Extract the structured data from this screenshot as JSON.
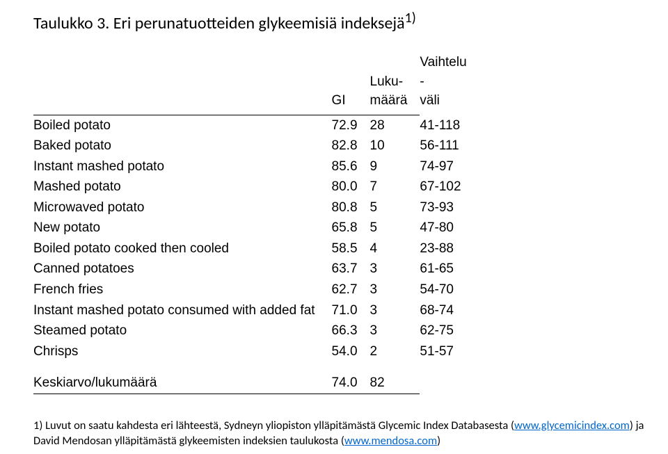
{
  "title": "Taulukko 3. Eri perunatuotteiden glykeemisiä indeksejä",
  "title_sup": "1)",
  "headers": {
    "name": "",
    "gi": "GI",
    "n_line1": "Luku-",
    "n_line2": "määrä",
    "rng_line1": "Vaihtelu",
    "rng_line2": "-",
    "rng_line3": "väli"
  },
  "rows": [
    {
      "name": "Boiled potato",
      "gi": "72.9",
      "n": "28",
      "rng": "41-118"
    },
    {
      "name": "Baked potato",
      "gi": "82.8",
      "n": "10",
      "rng": "56-111"
    },
    {
      "name": "Instant mashed potato",
      "gi": "85.6",
      "n": "9",
      "rng": "74-97"
    },
    {
      "name": "Mashed potato",
      "gi": "80.0",
      "n": "7",
      "rng": "67-102"
    },
    {
      "name": "Microwaved potato",
      "gi": "80.8",
      "n": "5",
      "rng": "73-93"
    },
    {
      "name": "New potato",
      "gi": "65.8",
      "n": "5",
      "rng": "47-80"
    },
    {
      "name": "Boiled potato cooked then cooled",
      "gi": "58.5",
      "n": "4",
      "rng": "23-88"
    },
    {
      "name": "Canned potatoes",
      "gi": "63.7",
      "n": "3",
      "rng": "61-65"
    },
    {
      "name": "French fries",
      "gi": "62.7",
      "n": "3",
      "rng": "54-70"
    },
    {
      "name": "Instant mashed potato consumed with added fat",
      "gi": "71.0",
      "n": "3",
      "rng": "68-74"
    },
    {
      "name": "Steamed potato",
      "gi": "66.3",
      "n": "3",
      "rng": "62-75"
    },
    {
      "name": "Chrisps",
      "gi": "54.0",
      "n": "2",
      "rng": "51-57"
    }
  ],
  "summary": {
    "label": "Keskiarvo/lukumäärä",
    "gi": "74.0",
    "n": "82"
  },
  "footnote": {
    "prefix": "1) Luvut on saatu kahdesta eri lähteestä, Sydneyn yliopiston ylläpitämästä Glycemic Index Databasesta (",
    "link1_text": "www.glycemicindex.com",
    "mid": ") ja David Mendosan ylläpitämästä glykeemisten indeksien taulukosta (",
    "link2_text": "www.mendosa.com",
    "suffix": ")"
  },
  "colors": {
    "text": "#000000",
    "bg": "#ffffff",
    "link": "#0066cc",
    "rule": "#000000"
  },
  "fonts": {
    "title_family": "Calibri",
    "body_family": "Arial",
    "title_size_pt": 18,
    "body_size_pt": 14,
    "footnote_size_pt": 12
  }
}
